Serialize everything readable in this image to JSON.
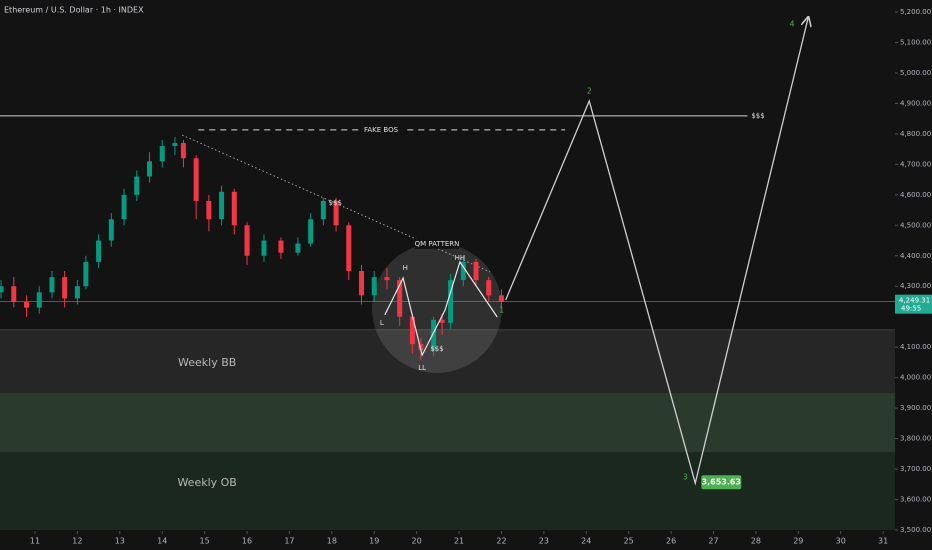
{
  "chart_data": {
    "type": "candlestick",
    "title": "Ethereum / U.S. Dollar · 1h · INDEX",
    "xlim": [
      10.175,
      31.28
    ],
    "xticks": [
      11,
      12,
      13,
      14,
      15,
      16,
      17,
      18,
      19,
      20,
      21,
      22,
      23,
      24,
      25,
      26,
      27,
      28,
      29,
      30,
      31
    ],
    "ylim": [
      3500,
      5200
    ],
    "yticks": [
      {
        "value": 5200,
        "label": "5,200.00"
      },
      {
        "value": 5100,
        "label": "5,100.00"
      },
      {
        "value": 5000,
        "label": "5,000.00"
      },
      {
        "value": 4900,
        "label": "4,900.00"
      },
      {
        "value": 4800,
        "label": "4,800.00"
      },
      {
        "value": 4700,
        "label": "4,700.00"
      },
      {
        "value": 4600,
        "label": "4,600.00"
      },
      {
        "value": 4500,
        "label": "4,500.00"
      },
      {
        "value": 4400,
        "label": "4,400.00"
      },
      {
        "value": 4300,
        "label": "4,300.00"
      },
      {
        "value": 4100,
        "label": "4,100.00"
      },
      {
        "value": 4000,
        "label": "4,000.00"
      },
      {
        "value": 3900,
        "label": "3,900.00"
      },
      {
        "value": 3800,
        "label": "3,800.00"
      },
      {
        "value": 3700,
        "label": "3,700.00"
      },
      {
        "value": 3600,
        "label": "3,600.00"
      },
      {
        "value": 3500,
        "label": "3,500.00"
      }
    ],
    "up_color": "#089981",
    "down_color": "#f23645",
    "candles": {
      "x": [
        10.2,
        10.5,
        10.8,
        11.1,
        11.4,
        11.7,
        12,
        12.2,
        12.5,
        12.8,
        13.1,
        13.4,
        13.7,
        14,
        14.3,
        14.5,
        14.8,
        15.1,
        15.4,
        15.7,
        16,
        16.4,
        16.8,
        17.2,
        17.5,
        17.8,
        18.1,
        18.4,
        18.7,
        19,
        19.3,
        19.6,
        19.9,
        20.1,
        20.4,
        20.6,
        20.8,
        21.1,
        21.4,
        21.7,
        22
      ],
      "open": [
        4280,
        4300,
        4250,
        4230,
        4280,
        4330,
        4260,
        4300,
        4380,
        4450,
        4520,
        4600,
        4660,
        4710,
        4760,
        4770,
        4720,
        4580,
        4520,
        4610,
        4500,
        4400,
        4450,
        4410,
        4440,
        4520,
        4580,
        4500,
        4350,
        4270,
        4330,
        4320,
        4200,
        4110,
        4090,
        4190,
        4180,
        4320,
        4380,
        4320,
        4270
      ],
      "high": [
        4320,
        4330,
        4270,
        4300,
        4350,
        4350,
        4320,
        4400,
        4470,
        4540,
        4620,
        4680,
        4740,
        4780,
        4790,
        4780,
        4730,
        4600,
        4630,
        4620,
        4510,
        4470,
        4460,
        4460,
        4540,
        4590,
        4590,
        4510,
        4370,
        4350,
        4360,
        4330,
        4210,
        4130,
        4200,
        4210,
        4340,
        4400,
        4390,
        4330,
        4290
      ],
      "low": [
        4260,
        4230,
        4200,
        4210,
        4260,
        4230,
        4240,
        4290,
        4360,
        4430,
        4500,
        4580,
        4640,
        4690,
        4730,
        4690,
        4520,
        4480,
        4500,
        4470,
        4370,
        4380,
        4390,
        4400,
        4430,
        4500,
        4480,
        4320,
        4240,
        4250,
        4290,
        4170,
        4080,
        4060,
        4070,
        4140,
        4160,
        4300,
        4300,
        4250,
        4230
      ],
      "close": [
        4300,
        4250,
        4230,
        4280,
        4330,
        4260,
        4300,
        4380,
        4450,
        4520,
        4600,
        4660,
        4710,
        4760,
        4770,
        4720,
        4580,
        4520,
        4610,
        4500,
        4400,
        4450,
        4410,
        4440,
        4520,
        4580,
        4500,
        4350,
        4270,
        4330,
        4320,
        4200,
        4110,
        4090,
        4190,
        4180,
        4320,
        4380,
        4320,
        4270,
        4250
      ]
    },
    "zones": [
      {
        "low": 3950,
        "high": 4157,
        "color": "#262626"
      },
      {
        "low": 3756,
        "high": 3950,
        "color": "#2a3b2e"
      },
      {
        "low": 3500,
        "high": 3756,
        "color": "#1b281e"
      }
    ],
    "last_price": {
      "value": 4249.31,
      "label": "4,249.31",
      "countdown": "49:55",
      "color": "#22ab94"
    },
    "levels": [
      {
        "value": 4859,
        "x": [
          10.175,
          27.8
        ],
        "style": "solid"
      },
      {
        "value": 4813,
        "x": [
          14.85,
          23.5
        ],
        "style": "dashed"
      }
    ],
    "trendline": {
      "x": [
        14.47,
        21.73
      ],
      "values": [
        4796,
        4347
      ]
    },
    "qm_path": {
      "x": [
        19.25,
        19.68,
        20.13,
        20.67,
        21.02,
        21.9
      ],
      "values": [
        4206,
        4327,
        4074,
        4222,
        4380,
        4199
      ]
    },
    "projection": {
      "x": [
        22.1,
        24.07,
        26.57,
        29.23
      ],
      "values": [
        4255,
        4908,
        3653.63,
        5180
      ],
      "point_labels": [
        "1",
        "2",
        "3",
        "4"
      ],
      "value_labels": [
        null,
        null,
        "3,653.63",
        null
      ],
      "color": "#cfcfcf",
      "label_color": "#4caf50"
    },
    "annotations": [
      {
        "text": "FAKE BOS",
        "x": 19.16,
        "y": 4813
      },
      {
        "text": "$$$",
        "x": 28.05,
        "y": 4859
      },
      {
        "text": "$$$",
        "x": 18.08,
        "y": 4573
      },
      {
        "text": "QM PATTERN",
        "x": 20.48,
        "y": 4439
      },
      {
        "text": "H",
        "x": 19.73,
        "y": 4360
      },
      {
        "text": "HH",
        "x": 21.02,
        "y": 4393
      },
      {
        "text": "L",
        "x": 19.18,
        "y": 4179
      },
      {
        "text": "LL",
        "x": 20.13,
        "y": 4032
      },
      {
        "text": "$$$",
        "x": 20.48,
        "y": 4094
      },
      {
        "text": "Weekly BB",
        "x": 15.06,
        "y": 4048
      },
      {
        "text": "Weekly OB",
        "x": 15.06,
        "y": 3654
      }
    ]
  }
}
